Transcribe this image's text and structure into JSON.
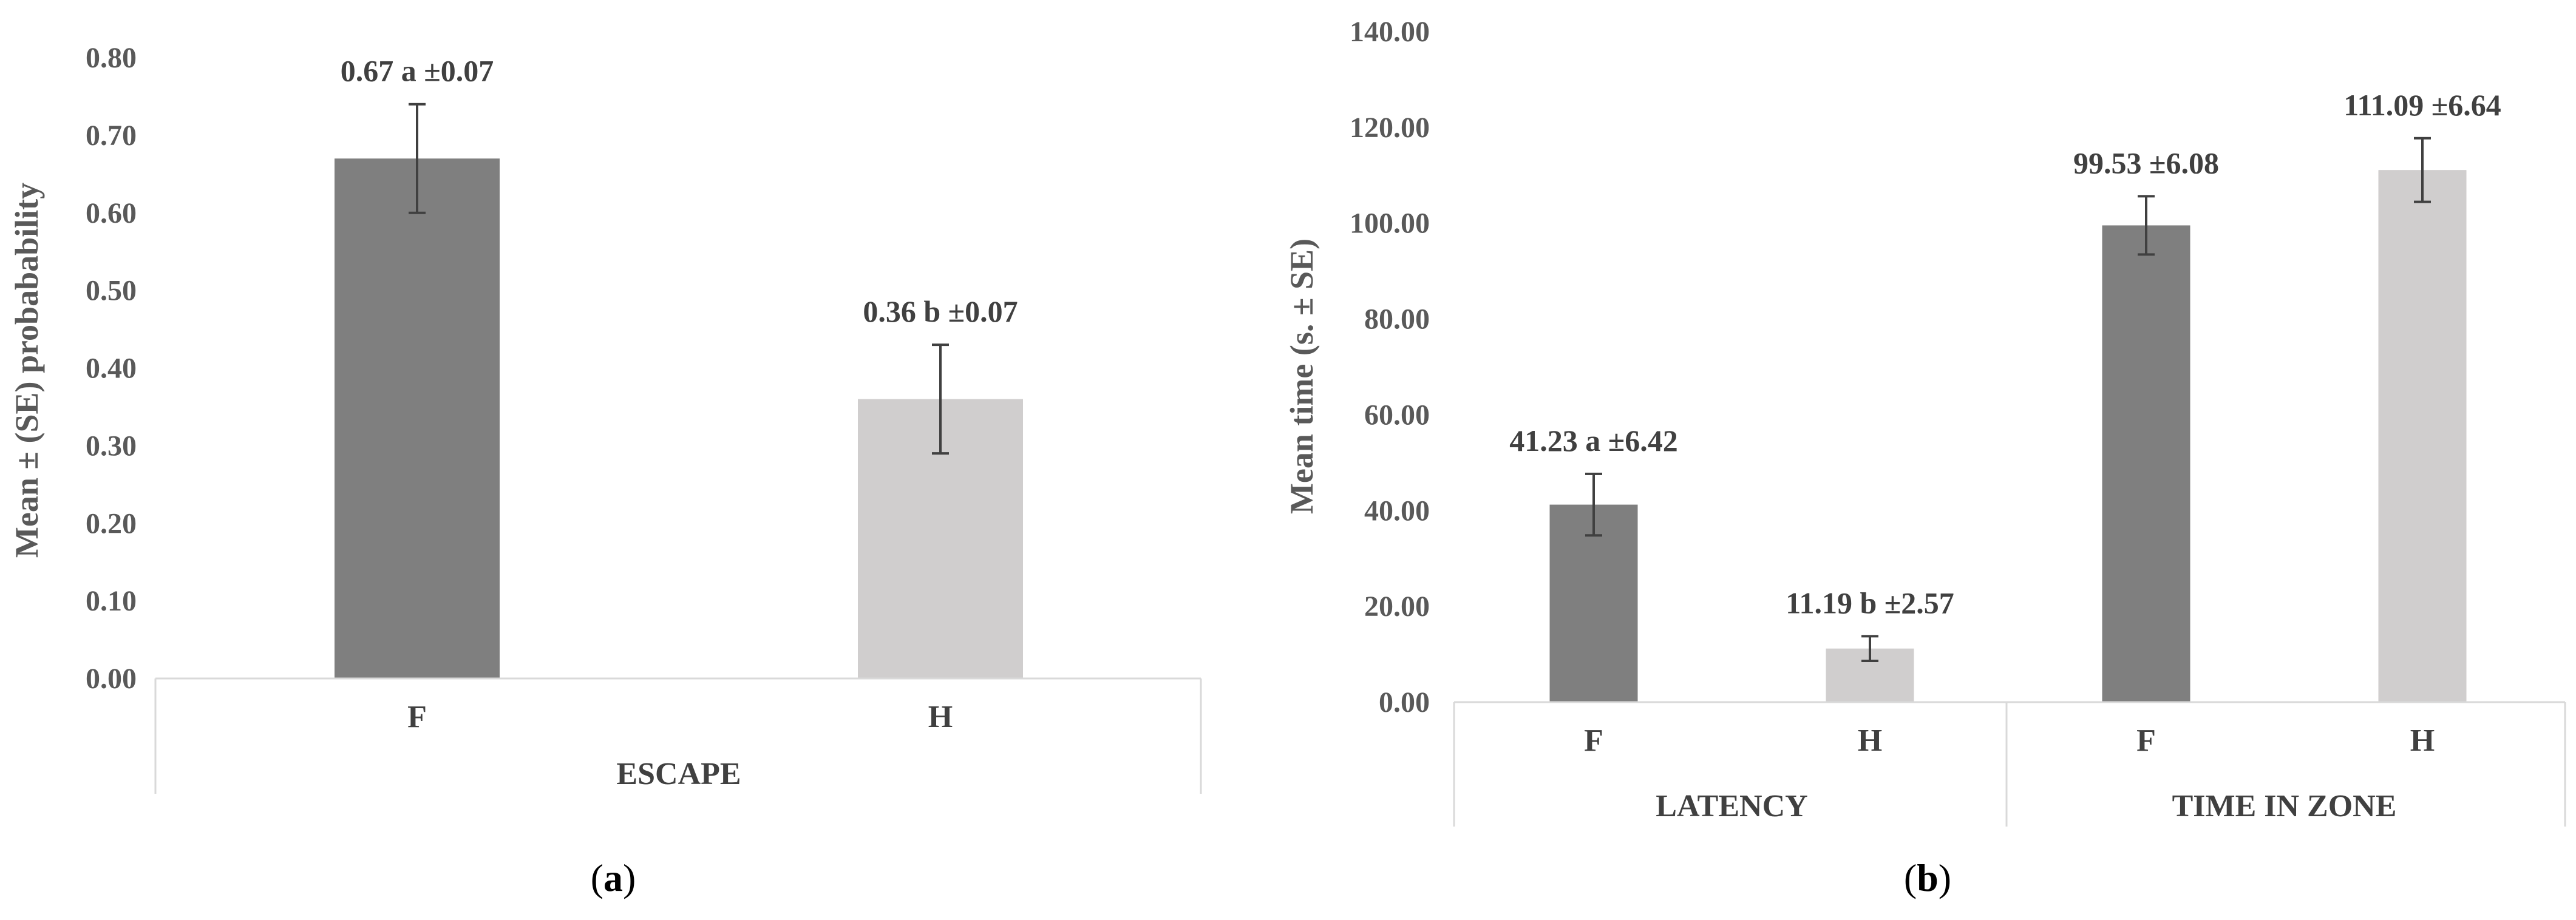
{
  "chart_data": [
    {
      "type": "bar",
      "panel_label": "a",
      "ylabel": "Mean ± (SE) probabability",
      "ylim": [
        0,
        0.8
      ],
      "yticks": [
        "0.00",
        "0.10",
        "0.20",
        "0.30",
        "0.40",
        "0.50",
        "0.60",
        "0.70",
        "0.80"
      ],
      "groups": [
        {
          "name": "ESCAPE",
          "categories": [
            "F",
            "H"
          ]
        }
      ],
      "bars": [
        {
          "category": "F",
          "group": "ESCAPE",
          "value": 0.67,
          "se": 0.07,
          "label": "0.67 a ±0.07",
          "color": "#7f7f7f"
        },
        {
          "category": "H",
          "group": "ESCAPE",
          "value": 0.36,
          "se": 0.07,
          "label": "0.36 b ±0.07",
          "color": "#d0cece"
        }
      ]
    },
    {
      "type": "bar",
      "panel_label": "b",
      "ylabel": "Mean time (s. ± SE)",
      "ylim": [
        0,
        140
      ],
      "yticks": [
        "0.00",
        "20.00",
        "40.00",
        "60.00",
        "80.00",
        "100.00",
        "120.00",
        "140.00"
      ],
      "groups": [
        {
          "name": "LATENCY",
          "categories": [
            "F",
            "H"
          ]
        },
        {
          "name": "TIME IN ZONE",
          "categories": [
            "F",
            "H"
          ]
        }
      ],
      "bars": [
        {
          "category": "F",
          "group": "LATENCY",
          "value": 41.23,
          "se": 6.42,
          "label": "41.23 a ±6.42",
          "color": "#7f7f7f"
        },
        {
          "category": "H",
          "group": "LATENCY",
          "value": 11.19,
          "se": 2.57,
          "label": "11.19 b ±2.57",
          "color": "#d0cece"
        },
        {
          "category": "F",
          "group": "TIME IN ZONE",
          "value": 99.53,
          "se": 6.08,
          "label": "99.53 ±6.08",
          "color": "#7f7f7f"
        },
        {
          "category": "H",
          "group": "TIME IN ZONE",
          "value": 111.09,
          "se": 6.64,
          "label": "111.09 ±6.64",
          "color": "#d0cece"
        }
      ]
    }
  ]
}
